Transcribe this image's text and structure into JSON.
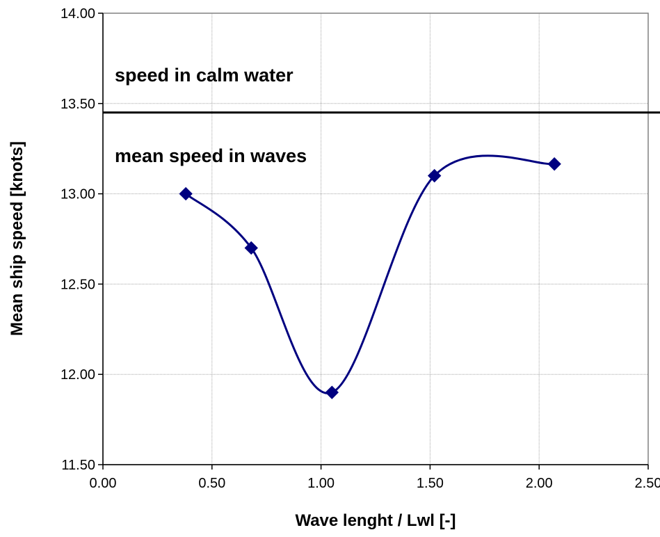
{
  "chart_data": {
    "type": "line",
    "xlabel": "Wave lenght / Lwl [-]",
    "ylabel": "Mean ship speed [knots]",
    "xlim": [
      0,
      2.5
    ],
    "ylim": [
      11.5,
      14.0
    ],
    "x_ticks": [
      "0.00",
      "0.50",
      "1.00",
      "1.50",
      "2.00",
      "2.50"
    ],
    "y_ticks": [
      "11.50",
      "12.00",
      "12.50",
      "13.00",
      "13.50",
      "14.00"
    ],
    "grid": true,
    "smooth": true,
    "series": [
      {
        "marker": "diamond",
        "color": "#000080",
        "points": [
          {
            "x": 0.38,
            "y": 13.0
          },
          {
            "x": 0.68,
            "y": 12.7
          },
          {
            "x": 1.05,
            "y": 11.9
          },
          {
            "x": 1.52,
            "y": 13.1
          },
          {
            "x": 2.07,
            "y": 13.165
          }
        ]
      }
    ],
    "reference_line": {
      "y": 13.45,
      "color": "#000000"
    },
    "annotations": {
      "calm": "speed in calm water",
      "waves": "mean speed in  waves"
    }
  }
}
